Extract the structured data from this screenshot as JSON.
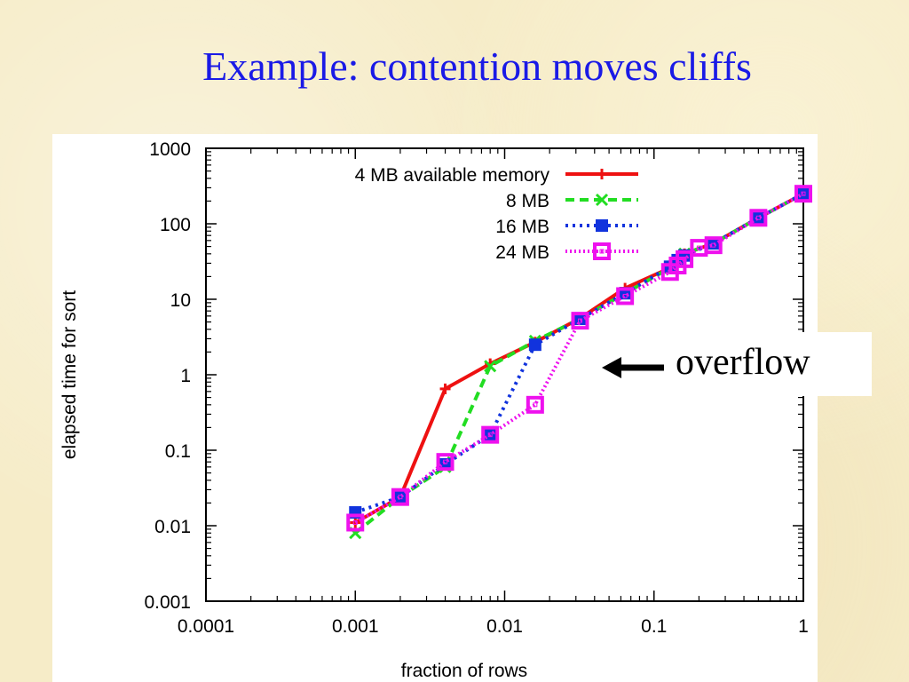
{
  "slide": {
    "title": "Example: contention moves cliffs"
  },
  "annotation": {
    "text": "overflow",
    "icon": "arrow-left-icon"
  },
  "chart_data": {
    "type": "line",
    "xscale": "log",
    "yscale": "log",
    "xlabel": "fraction of rows",
    "ylabel": "elapsed time for sort",
    "xlim": [
      0.0001,
      1
    ],
    "ylim": [
      0.001,
      1000
    ],
    "x_ticks": [
      "0.0001",
      "0.001",
      "0.01",
      "0.1",
      "1"
    ],
    "y_ticks": [
      "0.001",
      "0.01",
      "0.1",
      "1",
      "10",
      "100",
      "1000"
    ],
    "legend_position": "top-right",
    "series": [
      {
        "name": "4 MB available memory",
        "color": "#ee1111",
        "dash": "solid",
        "marker": "plus",
        "points": [
          [
            0.001,
            0.011
          ],
          [
            0.002,
            0.024
          ],
          [
            0.004,
            0.65
          ],
          [
            0.008,
            1.4
          ],
          [
            0.016,
            2.7
          ],
          [
            0.032,
            5.6
          ],
          [
            0.064,
            14
          ],
          [
            0.128,
            26
          ],
          [
            0.16,
            40
          ],
          [
            0.25,
            55
          ],
          [
            0.5,
            120
          ],
          [
            1,
            250
          ]
        ]
      },
      {
        "name": "8 MB",
        "color": "#22dd22",
        "dash": "dashed",
        "marker": "cross",
        "points": [
          [
            0.001,
            0.008
          ],
          [
            0.002,
            0.024
          ],
          [
            0.004,
            0.06
          ],
          [
            0.008,
            1.3
          ],
          [
            0.016,
            2.8
          ],
          [
            0.032,
            5.5
          ],
          [
            0.064,
            12
          ],
          [
            0.128,
            26
          ],
          [
            0.16,
            40
          ],
          [
            0.25,
            55
          ],
          [
            0.5,
            120
          ],
          [
            1,
            250
          ]
        ]
      },
      {
        "name": "16 MB",
        "color": "#1133dd",
        "dash": "dotted",
        "marker": "filled-square",
        "points": [
          [
            0.001,
            0.015
          ],
          [
            0.002,
            0.024
          ],
          [
            0.004,
            0.065
          ],
          [
            0.008,
            0.16
          ],
          [
            0.016,
            2.5
          ],
          [
            0.032,
            5.5
          ],
          [
            0.064,
            12
          ],
          [
            0.128,
            27
          ],
          [
            0.144,
            33
          ],
          [
            0.16,
            38
          ],
          [
            0.25,
            55
          ],
          [
            0.5,
            120
          ],
          [
            1,
            250
          ]
        ]
      },
      {
        "name": "24 MB",
        "color": "#ee11ee",
        "dash": "fine-dotted",
        "marker": "open-square",
        "points": [
          [
            0.001,
            0.011
          ],
          [
            0.002,
            0.024
          ],
          [
            0.004,
            0.07
          ],
          [
            0.008,
            0.16
          ],
          [
            0.016,
            0.4
          ],
          [
            0.032,
            5.2
          ],
          [
            0.064,
            11
          ],
          [
            0.128,
            23
          ],
          [
            0.144,
            28
          ],
          [
            0.16,
            34
          ],
          [
            0.2,
            48
          ],
          [
            0.25,
            52
          ],
          [
            0.5,
            120
          ],
          [
            1,
            250
          ]
        ]
      }
    ]
  }
}
